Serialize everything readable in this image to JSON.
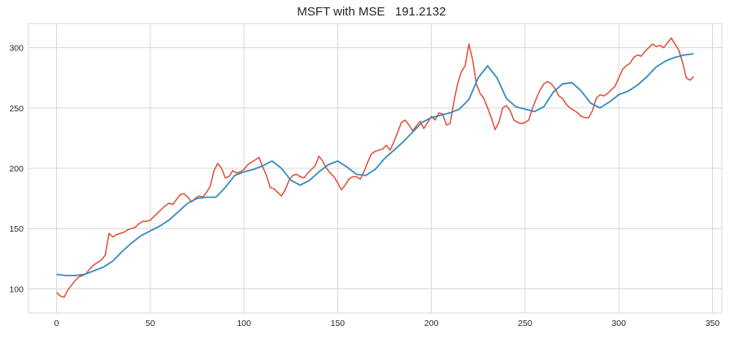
{
  "chart_data": {
    "type": "line",
    "title": "MSFT with MSE   191.2132",
    "xlabel": "",
    "ylabel": "",
    "xlim": [
      -15,
      355
    ],
    "ylim": [
      80,
      320
    ],
    "xticks": [
      0,
      50,
      100,
      150,
      200,
      250,
      300,
      350
    ],
    "yticks": [
      100,
      150,
      200,
      250,
      300
    ],
    "grid": true,
    "series": [
      {
        "color": "#e24a33",
        "x": [
          0,
          2,
          4,
          6,
          8,
          10,
          12,
          14,
          16,
          18,
          20,
          22,
          24,
          26,
          28,
          30,
          32,
          34,
          36,
          38,
          40,
          42,
          44,
          46,
          48,
          50,
          52,
          54,
          56,
          58,
          60,
          62,
          64,
          66,
          68,
          70,
          72,
          74,
          76,
          78,
          80,
          82,
          84,
          86,
          88,
          90,
          92,
          94,
          96,
          98,
          100,
          102,
          104,
          106,
          108,
          110,
          112,
          114,
          116,
          118,
          120,
          122,
          124,
          126,
          128,
          130,
          132,
          134,
          136,
          138,
          140,
          142,
          144,
          146,
          148,
          150,
          152,
          154,
          156,
          158,
          160,
          162,
          164,
          166,
          168,
          170,
          172,
          174,
          176,
          178,
          180,
          182,
          184,
          186,
          188,
          190,
          192,
          194,
          196,
          198,
          200,
          202,
          204,
          206,
          208,
          210,
          212,
          214,
          216,
          218,
          220,
          222,
          224,
          226,
          228,
          230,
          232,
          234,
          236,
          238,
          240,
          242,
          244,
          246,
          248,
          250,
          252,
          254,
          256,
          258,
          260,
          262,
          264,
          266,
          268,
          270,
          272,
          274,
          276,
          278,
          280,
          282,
          284,
          286,
          288,
          290,
          292,
          294,
          296,
          298,
          300,
          302,
          304,
          306,
          308,
          310,
          312,
          314,
          316,
          318,
          320,
          322,
          324,
          326,
          328,
          330,
          332,
          334,
          336,
          338,
          340
        ],
        "values": [
          97,
          94,
          93,
          99,
          103,
          107,
          110,
          111,
          113,
          117,
          120,
          122,
          124,
          128,
          146,
          143,
          145,
          146,
          147,
          149,
          150,
          151,
          154,
          156,
          156,
          157,
          160,
          163,
          166,
          169,
          171,
          170,
          174,
          178,
          179,
          176,
          172,
          175,
          177,
          176,
          180,
          185,
          198,
          204,
          200,
          192,
          193,
          198,
          196,
          197,
          199,
          203,
          205,
          207,
          209,
          201,
          194,
          184,
          183,
          180,
          177,
          182,
          190,
          194,
          195,
          193,
          192,
          196,
          199,
          202,
          210,
          206,
          200,
          196,
          193,
          188,
          182,
          186,
          191,
          193,
          193,
          191,
          197,
          205,
          212,
          214,
          215,
          216,
          219,
          215,
          222,
          230,
          238,
          240,
          236,
          231,
          235,
          239,
          233,
          238,
          243,
          240,
          246,
          245,
          236,
          237,
          255,
          270,
          280,
          285,
          303,
          290,
          270,
          262,
          258,
          250,
          242,
          232,
          238,
          250,
          252,
          248,
          240,
          238,
          237,
          238,
          240,
          250,
          258,
          265,
          270,
          272,
          270,
          266,
          260,
          258,
          253,
          250,
          248,
          246,
          243,
          242,
          242,
          248,
          258,
          261,
          260,
          262,
          265,
          268,
          275,
          282,
          285,
          287,
          292,
          294,
          293,
          297,
          300,
          303,
          301,
          302,
          300,
          304,
          308,
          303,
          298,
          288,
          275,
          273,
          276
        ]
      },
      {
        "color": "#348abd",
        "x": [
          0,
          5,
          10,
          15,
          20,
          25,
          30,
          35,
          40,
          45,
          50,
          55,
          60,
          65,
          70,
          75,
          80,
          85,
          90,
          95,
          100,
          105,
          110,
          115,
          120,
          125,
          130,
          135,
          140,
          145,
          150,
          155,
          160,
          165,
          170,
          175,
          180,
          185,
          190,
          195,
          200,
          205,
          210,
          215,
          220,
          225,
          230,
          235,
          240,
          245,
          250,
          255,
          260,
          265,
          270,
          275,
          280,
          285,
          290,
          295,
          300,
          305,
          310,
          315,
          320,
          325,
          330,
          335,
          340
        ],
        "values": [
          112,
          111,
          111,
          112,
          115,
          118,
          123,
          131,
          138,
          144,
          148,
          152,
          157,
          164,
          171,
          175,
          176,
          176,
          184,
          194,
          197,
          199,
          202,
          206,
          200,
          190,
          186,
          190,
          197,
          203,
          206,
          201,
          195,
          194,
          199,
          208,
          215,
          222,
          230,
          238,
          242,
          244,
          246,
          249,
          257,
          275,
          285,
          275,
          258,
          251,
          249,
          247,
          251,
          263,
          270,
          271,
          264,
          254,
          250,
          255,
          261,
          264,
          269,
          276,
          284,
          289,
          292,
          294,
          295
        ]
      }
    ]
  }
}
